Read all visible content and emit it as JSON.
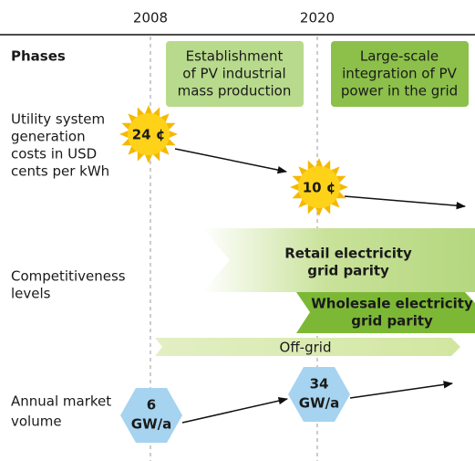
{
  "years": [
    "2008",
    "2020"
  ],
  "phases": {
    "title": "Phases",
    "items": [
      {
        "lines": [
          "Establishment",
          "of PV industrial",
          "mass production"
        ]
      },
      {
        "lines": [
          "Large-scale",
          "integration of PV",
          "power in the grid"
        ]
      }
    ]
  },
  "costs": {
    "label": [
      "Utility system",
      "generation",
      "costs in USD",
      "cents per kWh"
    ],
    "items": [
      "24 ¢",
      "10 ¢"
    ]
  },
  "competitiveness": {
    "label": [
      "Competitiveness",
      "levels"
    ],
    "retail": [
      "Retail electricity",
      "grid parity"
    ],
    "wholesale": [
      "Wholesale electricity",
      "grid parity"
    ],
    "offgrid": "Off-grid"
  },
  "volume": {
    "label": [
      "Annual market",
      "volume"
    ],
    "items": [
      {
        "lines": [
          "6",
          "GW/a"
        ]
      },
      {
        "lines": [
          "34",
          "GW/a"
        ]
      }
    ]
  }
}
